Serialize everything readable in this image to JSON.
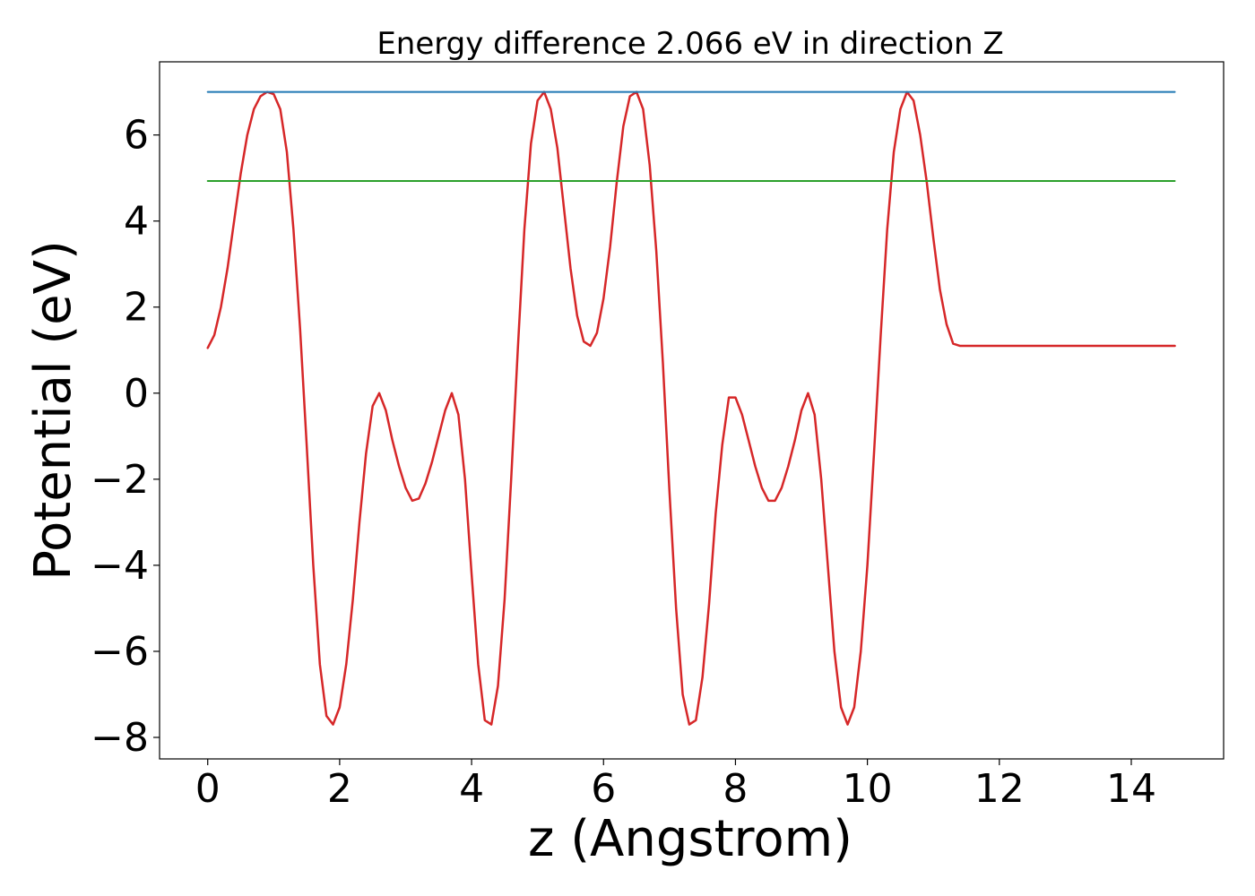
{
  "chart_data": {
    "type": "line",
    "title": "Energy difference 2.066 eV in direction Z",
    "xlabel": "z (Angstrom)",
    "ylabel": "Potential (eV)",
    "xlim": [
      -0.73,
      15.4
    ],
    "ylim": [
      -8.5,
      7.7
    ],
    "xticks": [
      0,
      2,
      4,
      6,
      8,
      10,
      12,
      14
    ],
    "yticks": [
      -8,
      -6,
      -4,
      -2,
      0,
      2,
      4,
      6
    ],
    "xtick_labels": [
      "0",
      "2",
      "4",
      "6",
      "8",
      "10",
      "12",
      "14"
    ],
    "ytick_labels": [
      "−8",
      "−6",
      "−4",
      "−2",
      "0",
      "2",
      "4",
      "6"
    ],
    "grid": false,
    "legend": "none",
    "series": [
      {
        "color": "#d62728",
        "x": [
          0.0,
          0.1,
          0.2,
          0.3,
          0.4,
          0.5,
          0.6,
          0.7,
          0.8,
          0.9,
          1.0,
          1.1,
          1.2,
          1.3,
          1.4,
          1.5,
          1.6,
          1.7,
          1.8,
          1.9,
          2.0,
          2.1,
          2.2,
          2.3,
          2.4,
          2.5,
          2.6,
          2.7,
          2.8,
          2.9,
          3.0,
          3.1,
          3.2,
          3.3,
          3.4,
          3.5,
          3.6,
          3.7,
          3.8,
          3.9,
          4.0,
          4.1,
          4.2,
          4.3,
          4.4,
          4.5,
          4.6,
          4.7,
          4.8,
          4.9,
          5.0,
          5.1,
          5.2,
          5.3,
          5.4,
          5.5,
          5.6,
          5.7,
          5.8,
          5.9,
          6.0,
          6.1,
          6.2,
          6.3,
          6.4,
          6.5,
          6.6,
          6.7,
          6.8,
          6.9,
          7.0,
          7.1,
          7.2,
          7.3,
          7.4,
          7.5,
          7.6,
          7.7,
          7.8,
          7.9,
          8.0,
          8.1,
          8.2,
          8.3,
          8.4,
          8.5,
          8.6,
          8.7,
          8.8,
          8.9,
          9.0,
          9.1,
          9.2,
          9.3,
          9.4,
          9.5,
          9.6,
          9.7,
          9.8,
          9.9,
          10.0,
          10.1,
          10.2,
          10.3,
          10.4,
          10.5,
          10.6,
          10.7,
          10.8,
          10.9,
          11.0,
          11.1,
          11.2,
          11.3,
          11.4,
          11.5,
          11.6,
          11.7,
          11.8,
          11.9,
          12.0,
          12.1,
          12.2,
          12.3,
          12.4,
          12.5,
          12.6,
          12.7,
          12.8,
          12.9,
          13.0,
          13.1,
          13.2,
          13.3,
          13.4,
          13.5,
          13.6,
          13.7,
          13.8,
          13.9,
          14.0,
          14.1,
          14.2,
          14.3,
          14.4,
          14.5,
          14.6,
          14.66
        ],
        "y": [
          1.05,
          1.35,
          2.0,
          2.9,
          4.0,
          5.1,
          6.0,
          6.6,
          6.9,
          7.0,
          6.95,
          6.6,
          5.6,
          3.8,
          1.5,
          -1.2,
          -4.0,
          -6.3,
          -7.5,
          -7.7,
          -7.3,
          -6.3,
          -4.8,
          -3.0,
          -1.4,
          -0.3,
          0.0,
          -0.4,
          -1.1,
          -1.7,
          -2.2,
          -2.5,
          -2.45,
          -2.1,
          -1.6,
          -1.0,
          -0.4,
          0.0,
          -0.5,
          -2.0,
          -4.2,
          -6.3,
          -7.6,
          -7.7,
          -6.8,
          -4.8,
          -2.0,
          1.0,
          3.8,
          5.8,
          6.8,
          7.0,
          6.6,
          5.7,
          4.3,
          2.9,
          1.8,
          1.2,
          1.1,
          1.4,
          2.2,
          3.4,
          4.9,
          6.2,
          6.9,
          7.0,
          6.6,
          5.3,
          3.3,
          0.7,
          -2.3,
          -5.0,
          -7.0,
          -7.7,
          -7.6,
          -6.6,
          -4.9,
          -2.8,
          -1.2,
          -0.1,
          -0.1,
          -0.5,
          -1.1,
          -1.7,
          -2.2,
          -2.5,
          -2.5,
          -2.2,
          -1.7,
          -1.1,
          -0.4,
          0.0,
          -0.5,
          -2.0,
          -4.0,
          -6.0,
          -7.3,
          -7.7,
          -7.3,
          -6.0,
          -4.0,
          -1.4,
          1.3,
          3.8,
          5.6,
          6.6,
          7.0,
          6.8,
          6.0,
          4.9,
          3.6,
          2.4,
          1.6,
          1.15,
          1.1,
          1.1,
          1.1,
          1.1,
          1.1,
          1.1,
          1.1,
          1.1,
          1.1,
          1.1,
          1.1,
          1.1,
          1.1,
          1.1,
          1.1,
          1.1,
          1.1,
          1.1,
          1.1,
          1.1,
          1.1,
          1.1,
          1.1,
          1.1,
          1.1,
          1.1,
          1.1,
          1.1,
          1.1,
          1.1,
          1.1,
          1.1,
          1.1,
          1.1
        ]
      },
      {
        "color": "#1f77b4",
        "x": [
          0.0,
          14.66
        ],
        "y": [
          7.0,
          7.0
        ]
      },
      {
        "color": "#2ca02c",
        "x": [
          0.0,
          14.66
        ],
        "y": [
          4.93,
          4.93
        ]
      }
    ]
  }
}
